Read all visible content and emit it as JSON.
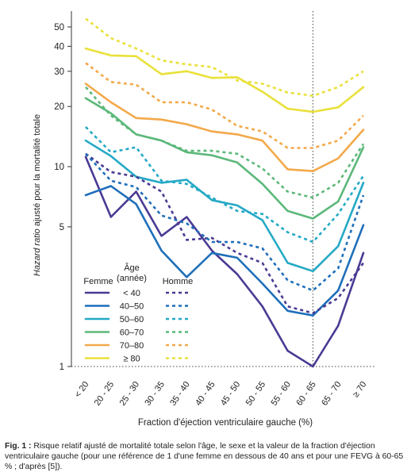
{
  "figure": {
    "caption_label": "Fig. 1 :",
    "caption_text": "Risque relatif ajusté de mortalité totale selon l'âge, le sexe et la valeur de la fraction d'éjection ventriculaire gauche (pour une référence de 1 d'une femme en dessous de 40 ans et pour une FEVG à 60-65 % ; d'après [5])."
  },
  "chart_data": {
    "type": "line",
    "xlabel": "Fraction d'éjection ventriculaire gauche (%)",
    "ylabel_italic": "Hazard ratio",
    "ylabel_rest": " ajusté pour la mortalité totale",
    "y_scale": "log",
    "ylim": [
      1,
      60
    ],
    "yticks": [
      1,
      5,
      10,
      20,
      30,
      40,
      50
    ],
    "reference_line": {
      "y": 1,
      "style": "dotted"
    },
    "reference_vline": {
      "category": "60 - 65",
      "style": "dotted"
    },
    "grid": false,
    "categories": [
      "< 20",
      "20 - 25",
      "25 - 30",
      "30 - 35",
      "35 - 40",
      "40 - 45",
      "45 - 50",
      "50 - 55",
      "55 - 60",
      "60 - 65",
      "65 - 70",
      "≥ 70"
    ],
    "legend": {
      "placement": "lower-left",
      "female_header": "Femme",
      "age_header_line1": "Âge",
      "age_header_line2": "(année)",
      "male_header": "Homme",
      "age_groups": [
        "< 40",
        "40–50",
        "50–60",
        "60–70",
        "70–80",
        "≥ 80"
      ]
    },
    "colors": {
      "< 40": "#4a3a93",
      "40–50": "#1f6fba",
      "50–60": "#24a9c6",
      "60–70": "#5cb87a",
      "70–80": "#f3a94a",
      "≥ 80": "#e9e13a"
    },
    "series": [
      {
        "sex": "Femme",
        "age": "< 40",
        "style": "solid",
        "values": [
          11.2,
          5.6,
          7.5,
          4.5,
          5.6,
          3.8,
          2.9,
          2.0,
          1.2,
          1.0,
          1.6,
          3.7
        ]
      },
      {
        "sex": "Femme",
        "age": "40–50",
        "style": "solid",
        "values": [
          7.2,
          8.0,
          6.5,
          3.8,
          2.8,
          3.7,
          3.5,
          2.6,
          1.9,
          1.8,
          2.4,
          5.1
        ]
      },
      {
        "sex": "Femme",
        "age": "50–60",
        "style": "solid",
        "values": [
          13.5,
          11.3,
          8.9,
          8.3,
          8.6,
          6.8,
          6.4,
          5.4,
          3.3,
          3.0,
          4.0,
          8.3
        ]
      },
      {
        "sex": "Femme",
        "age": "60–70",
        "style": "solid",
        "values": [
          22.0,
          18.5,
          14.5,
          13.5,
          11.8,
          11.4,
          10.5,
          8.2,
          6.0,
          5.5,
          6.7,
          12.5
        ]
      },
      {
        "sex": "Femme",
        "age": "70–80",
        "style": "solid",
        "values": [
          26.0,
          21.0,
          17.5,
          17.2,
          16.3,
          15.0,
          14.5,
          13.5,
          9.7,
          9.5,
          11.0,
          15.3
        ]
      },
      {
        "sex": "Femme",
        "age": "≥ 80",
        "style": "solid",
        "values": [
          39.0,
          36.0,
          35.7,
          29.0,
          30.0,
          27.8,
          28.0,
          23.7,
          19.5,
          18.8,
          19.8,
          25.0
        ]
      },
      {
        "sex": "Homme",
        "age": "< 40",
        "style": "dotted",
        "values": [
          11.6,
          9.4,
          8.9,
          7.5,
          4.3,
          4.4,
          3.7,
          3.3,
          2.0,
          1.85,
          2.2,
          3.3
        ]
      },
      {
        "sex": "Homme",
        "age": "40–50",
        "style": "dotted",
        "values": [
          11.6,
          8.5,
          7.9,
          5.7,
          5.2,
          4.2,
          4.2,
          3.9,
          2.7,
          2.4,
          3.1,
          7.2
        ]
      },
      {
        "sex": "Homme",
        "age": "50–60",
        "style": "dotted",
        "values": [
          15.8,
          11.8,
          12.5,
          8.5,
          8.2,
          7.0,
          6.0,
          5.8,
          4.7,
          4.2,
          5.8,
          9.0
        ]
      },
      {
        "sex": "Homme",
        "age": "60–70",
        "style": "dotted",
        "values": [
          25.0,
          18.0,
          14.5,
          13.5,
          12.0,
          12.0,
          11.6,
          9.8,
          7.5,
          7.0,
          8.3,
          13.0
        ]
      },
      {
        "sex": "Homme",
        "age": "70–80",
        "style": "dotted",
        "values": [
          33.0,
          26.5,
          25.7,
          21.0,
          21.0,
          19.3,
          16.0,
          15.0,
          12.4,
          12.4,
          13.5,
          18.0
        ]
      },
      {
        "sex": "Homme",
        "age": "≥ 80",
        "style": "dotted",
        "values": [
          55.0,
          44.0,
          39.0,
          34.0,
          32.5,
          31.5,
          27.0,
          26.0,
          23.5,
          22.6,
          25.0,
          30.0
        ]
      }
    ]
  }
}
